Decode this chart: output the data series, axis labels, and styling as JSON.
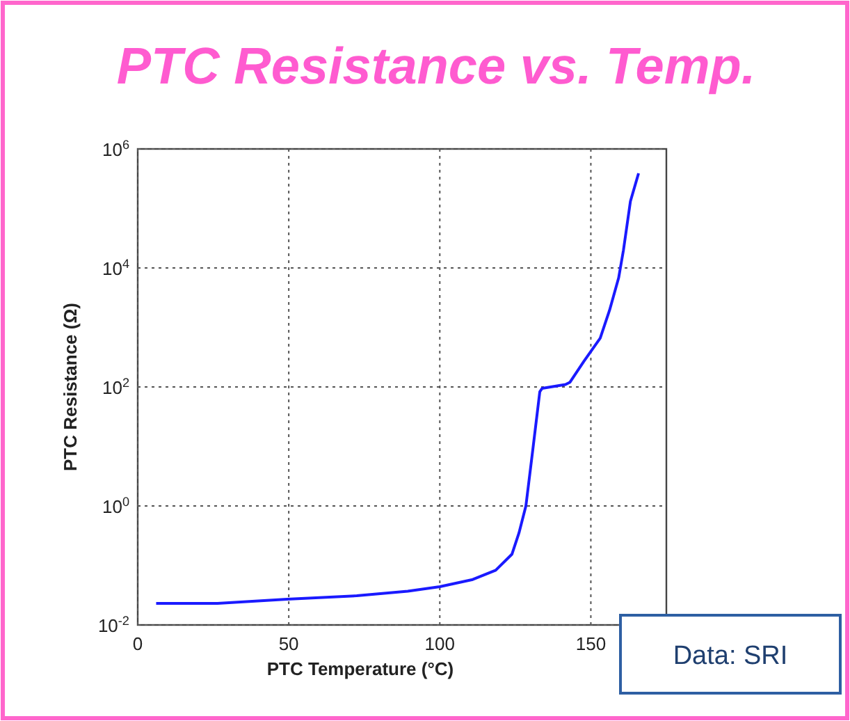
{
  "chart_data": {
    "type": "line",
    "title": "PTC Resistance vs. Temp.",
    "xlabel": "PTC Temperature (°C)",
    "ylabel": "PTC Resistance (Ω)",
    "log": "y",
    "grid": true,
    "line_style": "solid",
    "marker": "none",
    "xlim": [
      0,
      175
    ],
    "xticks": [
      0,
      50,
      100,
      150
    ],
    "ylim": [
      0.01,
      1000000
    ],
    "yticks": [
      {
        "value": 0.01,
        "label": "10$^{-2}$"
      },
      {
        "value": 1,
        "label": "10$^{0}$"
      },
      {
        "value": 100,
        "label": "10$^{2}$"
      },
      {
        "value": 10000,
        "label": "10$^{4}$"
      },
      {
        "value": 1000000,
        "label": "10$^{6}$"
      }
    ],
    "annotations": [
      "Data: SRI"
    ],
    "x": [
      6.1,
      26.4,
      49.4,
      72.5,
      89.4,
      100,
      110.9,
      118.5,
      123.9,
      126.2,
      128.5,
      130.8,
      133.1,
      133.9,
      141.6,
      143.1,
      147.7,
      153.1,
      156.2,
      159.2,
      160.8,
      163.1,
      165.8
    ],
    "series": [
      {
        "color": "#1a1aff",
        "values": [
          0.023,
          0.023,
          0.027,
          0.031,
          0.037,
          0.044,
          0.058,
          0.083,
          0.155,
          0.35,
          1.0,
          8.9,
          83,
          95,
          110,
          120,
          270,
          660,
          1950,
          6800,
          20000,
          132000,
          390000
        ]
      }
    ]
  }
}
